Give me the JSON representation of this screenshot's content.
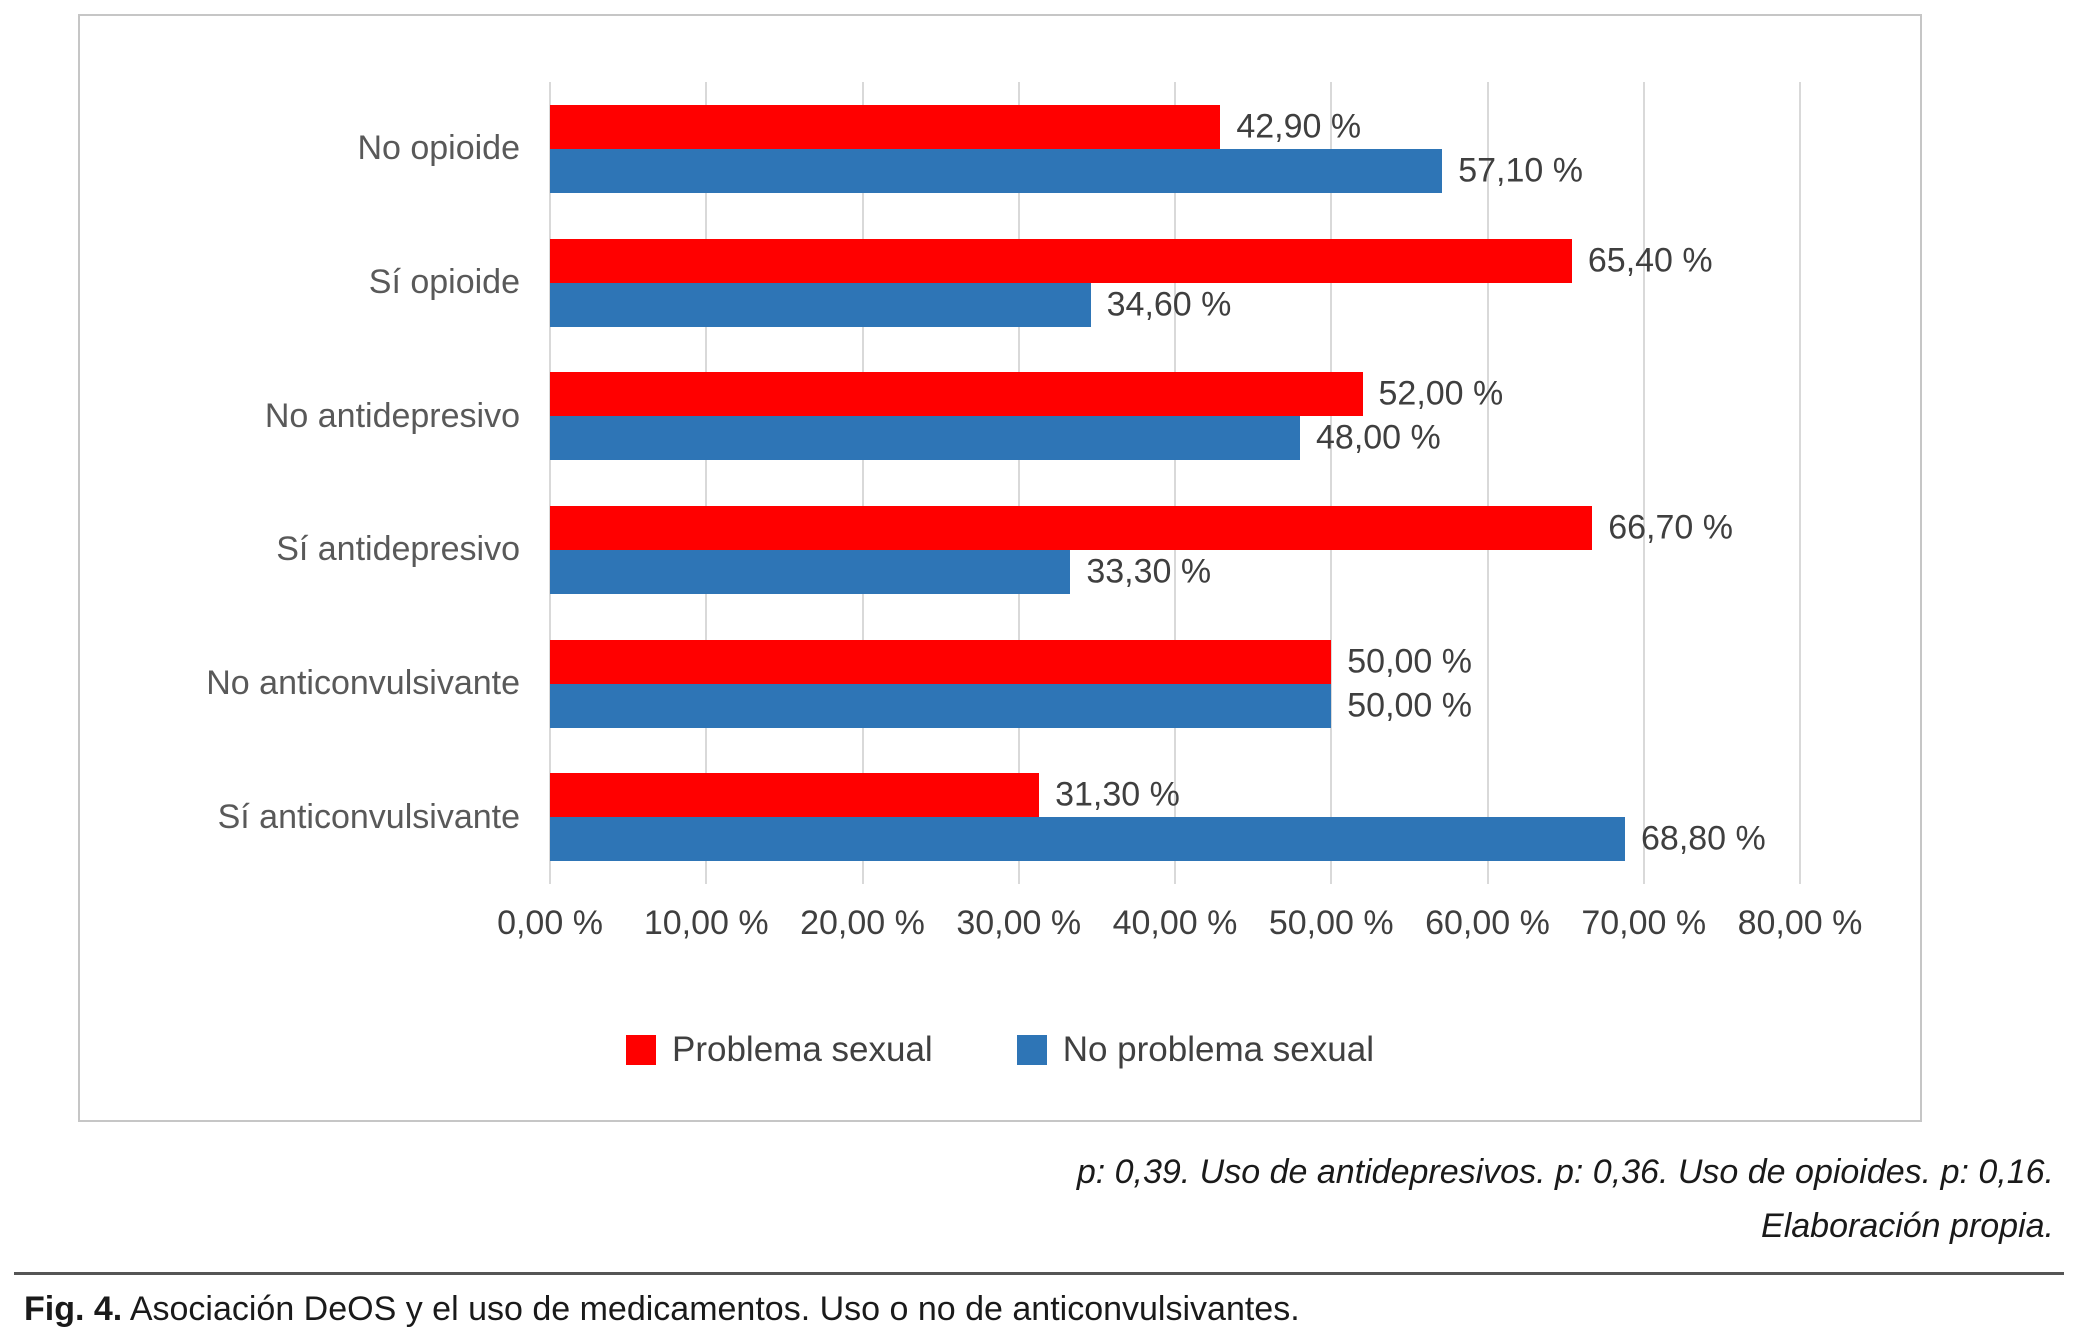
{
  "chart_data": {
    "type": "bar",
    "orientation": "horizontal",
    "categories": [
      "No opioide",
      "Sí opioide",
      "No antidepresivo",
      "Sí antidepresivo",
      "No anticonvulsivante",
      "Sí anticonvulsivante"
    ],
    "series": [
      {
        "name": "Problema sexual",
        "color": "#FF0000",
        "values": [
          42.9,
          65.4,
          52.0,
          66.7,
          50.0,
          31.3
        ],
        "value_labels": [
          "42,90 %",
          "65,40 %",
          "52,00 %",
          "66,70 %",
          "50,00 %",
          "31,30 %"
        ]
      },
      {
        "name": "No problema sexual",
        "color": "#2E75B6",
        "values": [
          57.1,
          34.6,
          48.0,
          33.3,
          50.0,
          68.8
        ],
        "value_labels": [
          "57,10 %",
          "34,60 %",
          "48,00 %",
          "33,30 %",
          "50,00 %",
          "68,80 %"
        ]
      }
    ],
    "xlim": [
      0,
      80
    ],
    "x_ticks": [
      "0,00 %",
      "10,00 %",
      "20,00 %",
      "30,00 %",
      "40,00 %",
      "50,00 %",
      "60,00 %",
      "70,00 %",
      "80,00 %"
    ],
    "grid": true,
    "legend_position": "bottom",
    "title": ""
  },
  "footnote": {
    "line1": "p: 0,39. Uso de antidepresivos. p: 0,36. Uso de opioides. p: 0,16.",
    "line2": "Elaboración propia."
  },
  "caption": {
    "prefix": "Fig. 4.",
    "text": "Asociación DeOS y el uso de medicamentos. Uso o no de anticonvulsivantes."
  }
}
